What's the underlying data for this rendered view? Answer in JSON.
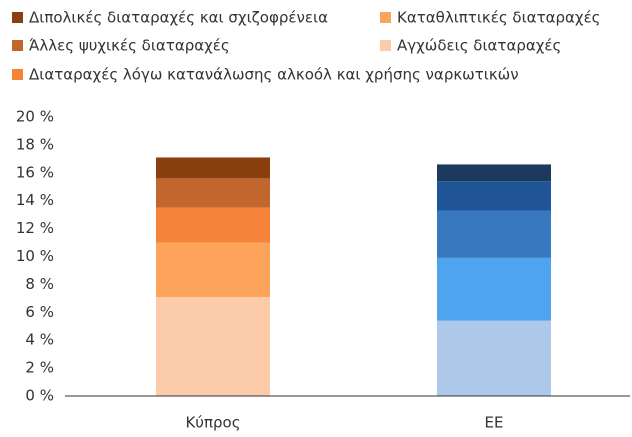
{
  "chart_data": {
    "type": "stacked_bar",
    "categories": [
      "Κύπρος",
      "ΕΕ"
    ],
    "series": [
      {
        "name": "Αγχώδεις διαταραχές",
        "colors": [
          "#fbcbaa",
          "#adc8e8"
        ],
        "values": [
          7.1,
          5.4
        ]
      },
      {
        "name": "Καταθλιπτικές διαταραχές",
        "colors": [
          "#fca35c",
          "#4fa4ef"
        ],
        "values": [
          3.9,
          4.5
        ]
      },
      {
        "name": "Διαταραχές λόγω κατανάλωσης αλκοόλ και χρήσης ναρκωτικών",
        "colors": [
          "#f5843a",
          "#3778be"
        ],
        "values": [
          2.5,
          3.4
        ]
      },
      {
        "name": "Άλλες ψυχικές διαταραχές",
        "colors": [
          "#c1672d",
          "#1f5596"
        ],
        "values": [
          2.1,
          2.1
        ]
      },
      {
        "name": "Διπολικές διαταραχές και σχιζοφρένεια",
        "colors": [
          "#8a3f0e",
          "#1c3a5e"
        ],
        "values": [
          1.5,
          1.2
        ]
      }
    ],
    "ylim": [
      0,
      20
    ],
    "yticks": [
      {
        "value": 0,
        "label": "0 %"
      },
      {
        "value": 2,
        "label": "2 %"
      },
      {
        "value": 4,
        "label": "4 %"
      },
      {
        "value": 6,
        "label": "6 %"
      },
      {
        "value": 8,
        "label": "8 %"
      },
      {
        "value": 10,
        "label": "10 %"
      },
      {
        "value": 12,
        "label": "12 %"
      },
      {
        "value": 14,
        "label": "14 %"
      },
      {
        "value": 16,
        "label": "16 %"
      },
      {
        "value": 18,
        "label": "18 %"
      },
      {
        "value": 20,
        "label": "20 %"
      }
    ],
    "grid": false
  }
}
